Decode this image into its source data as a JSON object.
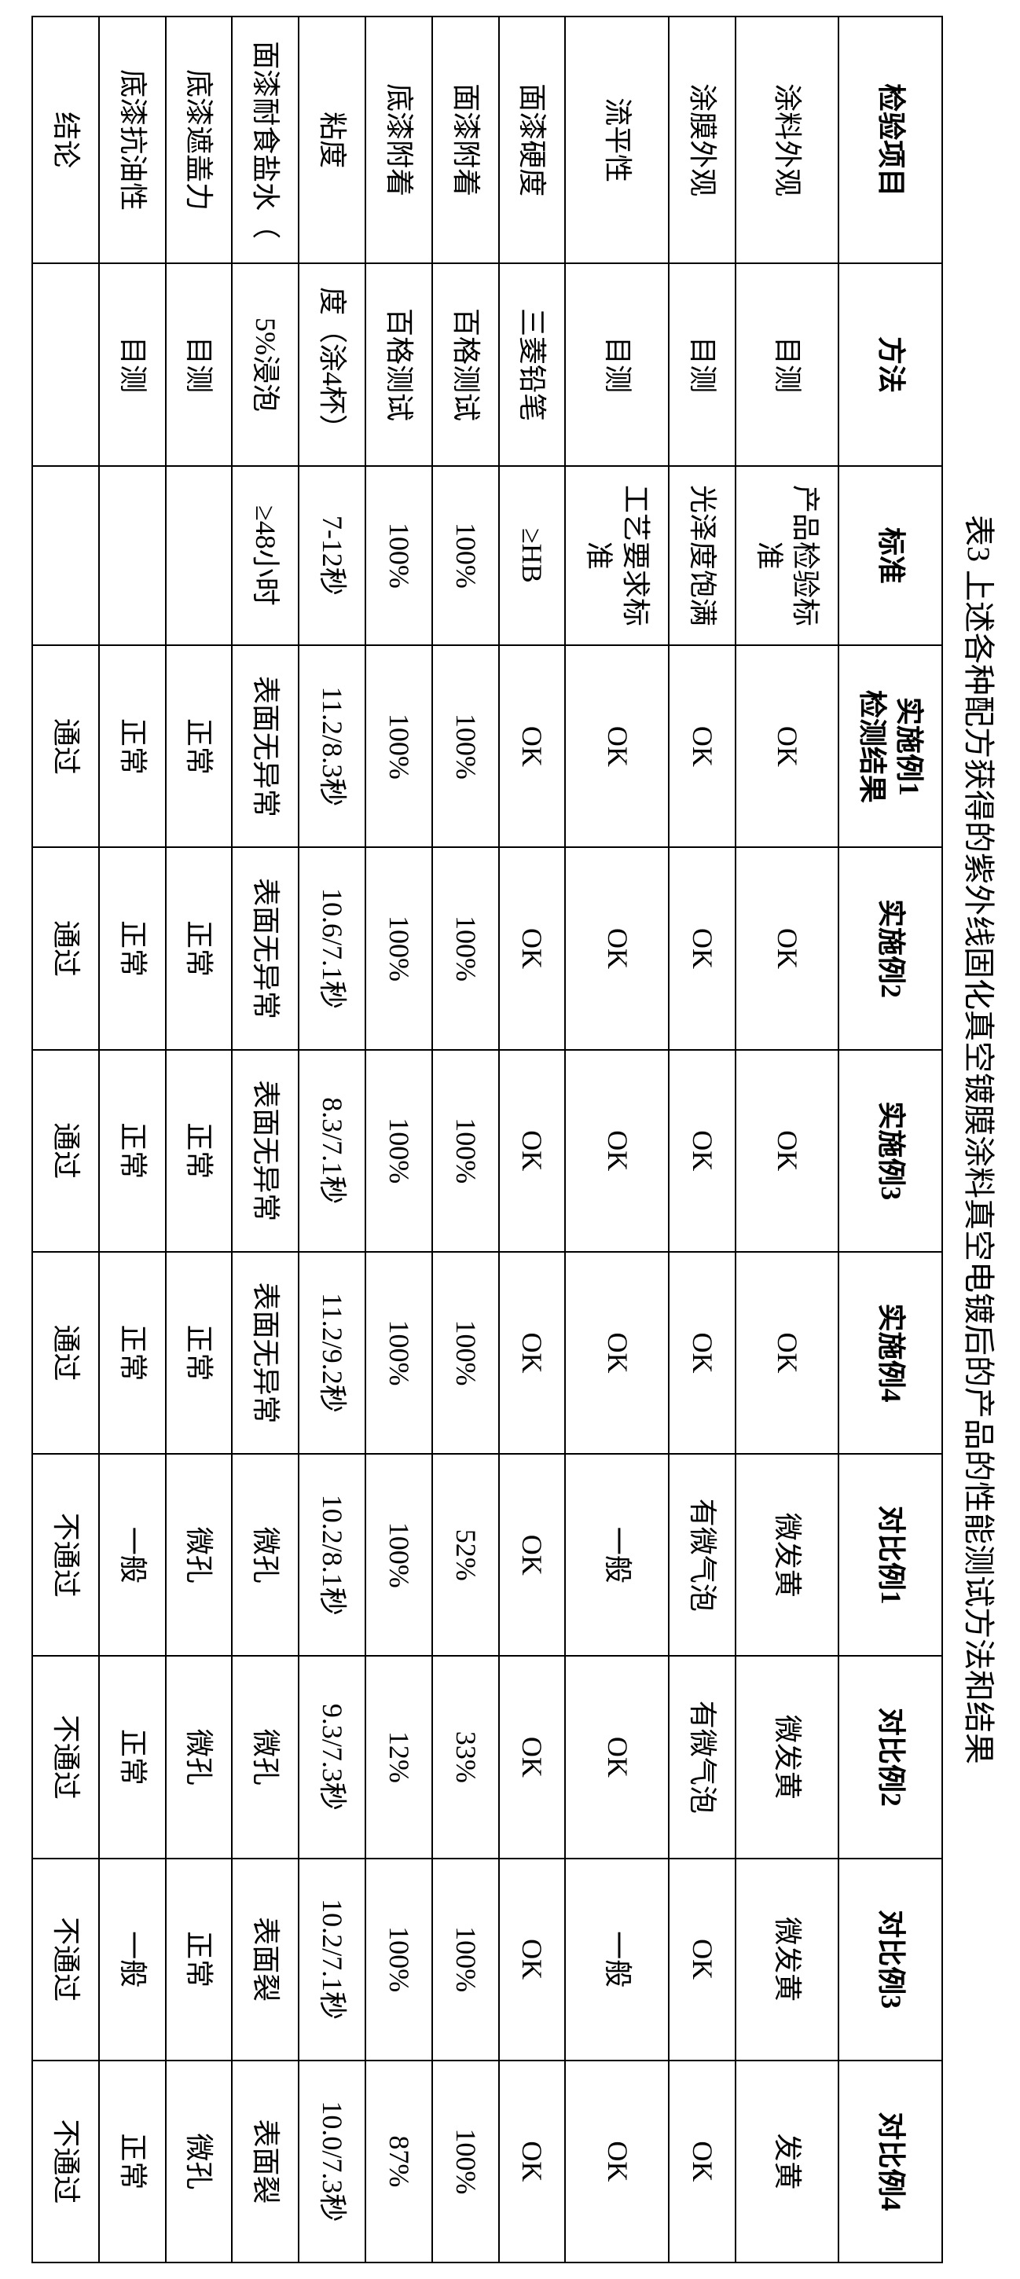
{
  "caption": "表3 上述各种配方获得的紫外线固化真空镀膜涂料真空电镀后的产品的性能测试方法和结果",
  "columns": [
    "检验项目",
    "方法",
    "标准",
    "实施例1\n检测结果",
    "实施例2",
    "实施例3",
    "实施例4",
    "对比例1",
    "对比例2",
    "对比例3",
    "对比例4"
  ],
  "rows": [
    [
      "涂料外观",
      "目测",
      "产品检验标准",
      "OK",
      "OK",
      "OK",
      "OK",
      "微发黄",
      "微发黄",
      "微发黄",
      "发黄"
    ],
    [
      "涂膜外观",
      "目测",
      "光泽度饱满",
      "OK",
      "OK",
      "OK",
      "OK",
      "有微气泡",
      "有微气泡",
      "OK",
      "OK"
    ],
    [
      "流平性",
      "目测",
      "工艺要求标准",
      "OK",
      "OK",
      "OK",
      "OK",
      "一般",
      "OK",
      "一般",
      "OK"
    ],
    [
      "面漆硬度",
      "三菱铅笔",
      "≥HB",
      "OK",
      "OK",
      "OK",
      "OK",
      "OK",
      "OK",
      "OK",
      "OK"
    ],
    [
      "面漆附着",
      "百格测试",
      "100%",
      "100%",
      "100%",
      "100%",
      "100%",
      "52%",
      "33%",
      "100%",
      "100%"
    ],
    [
      "底漆附着",
      "百格测试",
      "100%",
      "100%",
      "100%",
      "100%",
      "100%",
      "100%",
      "12%",
      "100%",
      "87%"
    ],
    [
      "粘度",
      "度（涂4杯）",
      "7-12秒",
      "11.2/8.3秒",
      "10.6/7.1秒",
      "8.3/7.1秒",
      "11.2/9.2秒",
      "10.2/8.1秒",
      "9.3/7.3秒",
      "10.2/7.1秒",
      "10.0/7.3秒"
    ],
    [
      "面漆耐食盐水（",
      "5%浸泡",
      "≥48小时",
      "表面无异常",
      "表面无异常",
      "表面无异常",
      "表面无异常",
      "微孔",
      "微孔",
      "表面裂",
      "表面裂"
    ],
    [
      "底漆遮盖力",
      "目测",
      "",
      "正常",
      "正常",
      "正常",
      "正常",
      "微孔",
      "微孔",
      "正常",
      "微孔"
    ],
    [
      "底漆抗油性",
      "目测",
      "",
      "正常",
      "正常",
      "正常",
      "正常",
      "一般",
      "正常",
      "一般",
      "正常"
    ],
    [
      "结论",
      "",
      "",
      "通过",
      "通过",
      "通过",
      "通过",
      "不通过",
      "不通过",
      "不通过",
      "不通过"
    ]
  ]
}
